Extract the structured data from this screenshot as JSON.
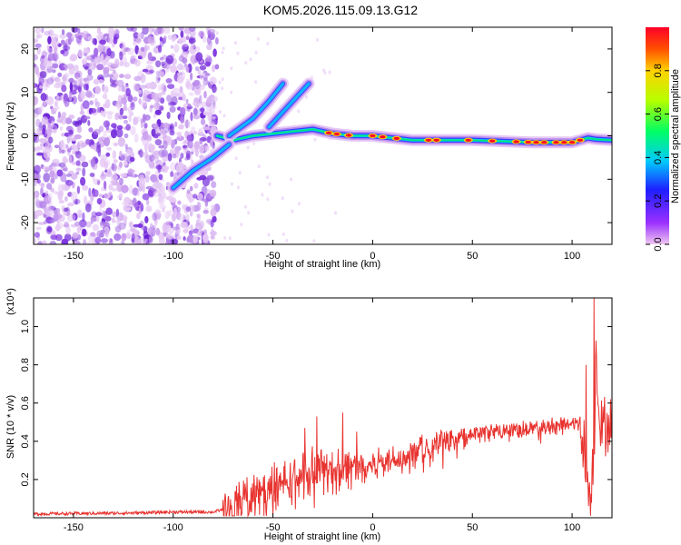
{
  "title": "KOM5.2026.115.09.13.G12",
  "chart_data": [
    {
      "type": "heatmap",
      "xlabel": "Height of straight line (km)",
      "ylabel": "Frequency (Hz)",
      "xlim": [
        -170,
        120
      ],
      "ylim": [
        -25,
        25
      ],
      "xticks": [
        -150,
        -100,
        -50,
        0,
        50,
        100
      ],
      "yticks": [
        -20,
        -10,
        0,
        10,
        20
      ],
      "colorbar": {
        "label": "Normalized spectral amplitude",
        "range": [
          0,
          1
        ],
        "ticks": [
          0.0,
          0.2,
          0.4,
          0.6,
          0.8
        ],
        "tick_labels": [
          "0.0",
          "0.2",
          "0.4",
          "0.6",
          "0.8"
        ],
        "colors": [
          "#f0c8f0",
          "#9b30ff",
          "#1e1eff",
          "#00c8ff",
          "#00ff64",
          "#b4ff00",
          "#ffd200",
          "#ff5000",
          "#ff0028"
        ]
      },
      "noise_region_x": [
        -170,
        -78
      ],
      "signal_ridges": [
        {
          "name": "main band",
          "points": [
            [
              -78,
              0
            ],
            [
              -70,
              -1
            ],
            [
              -60,
              0
            ],
            [
              -50,
              0.5
            ],
            [
              -40,
              1
            ],
            [
              -30,
              1.5
            ],
            [
              -20,
              0.5
            ],
            [
              -10,
              0
            ],
            [
              0,
              0
            ],
            [
              20,
              -1
            ],
            [
              50,
              -1
            ],
            [
              80,
              -1.5
            ],
            [
              100,
              -1.5
            ],
            [
              108,
              -0.5
            ],
            [
              112,
              -0.8
            ],
            [
              120,
              -1
            ]
          ]
        },
        {
          "name": "rising trace A",
          "points": [
            [
              -72,
              0
            ],
            [
              -60,
              4
            ],
            [
              -52,
              8
            ],
            [
              -45,
              12
            ]
          ]
        },
        {
          "name": "rising trace B",
          "points": [
            [
              -52,
              2
            ],
            [
              -42,
              7
            ],
            [
              -32,
              12
            ]
          ]
        },
        {
          "name": "low branch",
          "points": [
            [
              -100,
              -12
            ],
            [
              -90,
              -8
            ],
            [
              -80,
              -5
            ],
            [
              -72,
              -2
            ]
          ]
        }
      ],
      "hot_spots_x": [
        -22,
        -18,
        -12,
        0,
        5,
        12,
        28,
        32,
        48,
        60,
        72,
        78,
        82,
        86,
        92,
        96,
        100,
        104
      ]
    },
    {
      "type": "line",
      "xlabel": "Height of straight line (km)",
      "ylabel": "SNR (10 * v/v)",
      "y_multiplier": "(x10⁴)",
      "xlim": [
        -170,
        120
      ],
      "ylim": [
        0,
        1.15
      ],
      "xticks": [
        -150,
        -100,
        -50,
        0,
        50,
        100
      ],
      "yticks": [
        0.2,
        0.4,
        0.6,
        0.8,
        1.0
      ],
      "line_color": "#e8332f",
      "series": [
        {
          "name": "SNR",
          "envelope": [
            [
              -170,
              0.02
            ],
            [
              -120,
              0.025
            ],
            [
              -100,
              0.03
            ],
            [
              -80,
              0.03
            ],
            [
              -72,
              0.05
            ],
            [
              -60,
              0.12
            ],
            [
              -50,
              0.16
            ],
            [
              -40,
              0.2
            ],
            [
              -30,
              0.25
            ],
            [
              -20,
              0.24
            ],
            [
              -10,
              0.27
            ],
            [
              0,
              0.28
            ],
            [
              10,
              0.31
            ],
            [
              20,
              0.34
            ],
            [
              30,
              0.38
            ],
            [
              40,
              0.41
            ],
            [
              50,
              0.44
            ],
            [
              60,
              0.45
            ],
            [
              70,
              0.46
            ],
            [
              80,
              0.47
            ],
            [
              90,
              0.48
            ],
            [
              100,
              0.5
            ],
            [
              104,
              0.5
            ],
            [
              107,
              0.3
            ],
            [
              109,
              0.08
            ],
            [
              111,
              0.35
            ],
            [
              112,
              0.9
            ],
            [
              114,
              0.45
            ],
            [
              116,
              0.48
            ],
            [
              120,
              0.49
            ]
          ],
          "spikes": [
            [
              -34,
              0.47
            ],
            [
              -28,
              0.53
            ],
            [
              -15,
              0.55
            ],
            [
              -8,
              0.45
            ],
            [
              107,
              0.8
            ],
            [
              111,
              1.15
            ]
          ]
        }
      ]
    }
  ]
}
